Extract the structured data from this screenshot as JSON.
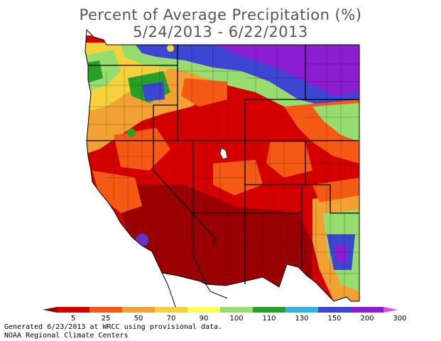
{
  "title_line1": "Percent of Average Precipitation (%)",
  "title_line2": "5/24/2013 - 6/22/2013",
  "footer_line1": "Generated 6/23/2013 at WRCC using provisional data.",
  "footer_line2": "NOAA Regional Climate Centers",
  "legend": {
    "ticks": [
      "5",
      "25",
      "50",
      "70",
      "90",
      "100",
      "110",
      "130",
      "150",
      "200",
      "300"
    ],
    "colors": [
      "#9b0000",
      "#d40000",
      "#f45a14",
      "#f2a232",
      "#f5d23c",
      "#ffff55",
      "#96dc6e",
      "#28a028",
      "#32b4dc",
      "#3c46d2",
      "#8c1ed2",
      "#e646e6"
    ]
  },
  "palette": {
    "very_dry": "#9b0000",
    "dry": "#d40000",
    "below": "#f45a14",
    "slightly_below": "#f2a232",
    "near": "#f5d23c",
    "above": "#96dc6e",
    "wet": "#28a028",
    "very_wet": "#3c46d2",
    "extreme": "#8c1ed2"
  }
}
